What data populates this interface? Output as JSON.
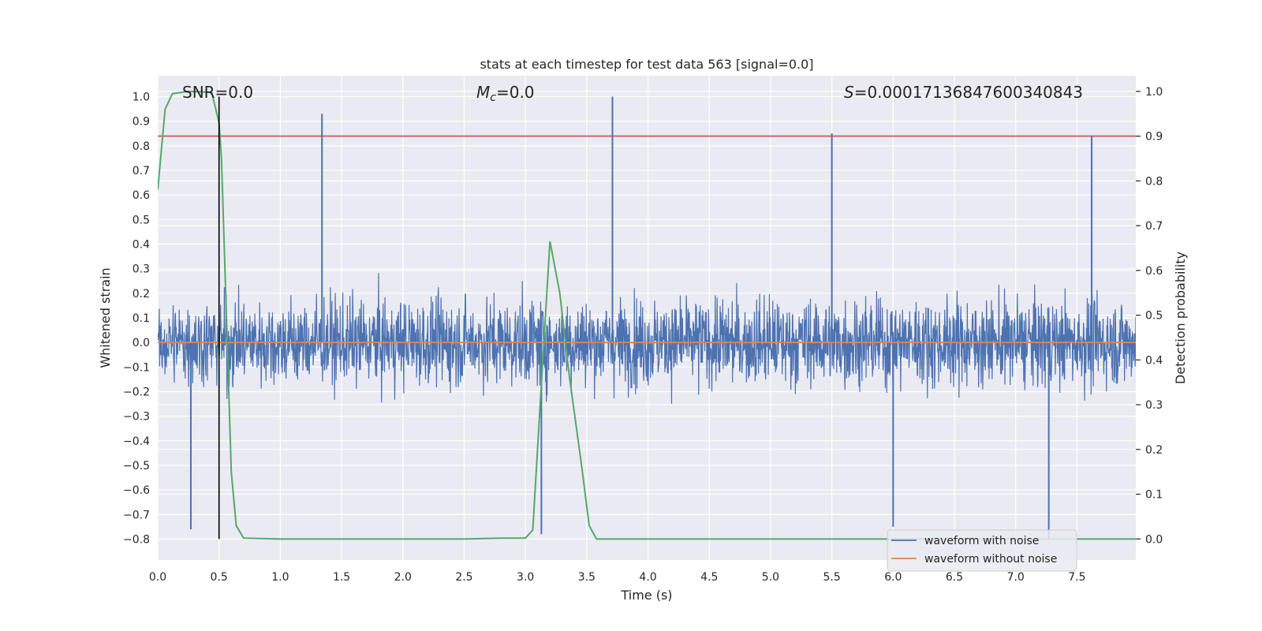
{
  "chart_data": {
    "type": "line",
    "title": "stats at each timestep for test data 563 [signal=0.0]",
    "xlabel": "Time (s)",
    "ylabel_left": "Whitened strain",
    "ylabel_right": "Detection probability",
    "xlim": [
      0.0,
      7.98
    ],
    "ylim_left": [
      -0.885,
      1.085
    ],
    "ylim_right": [
      -0.047,
      1.035
    ],
    "x_ticks": [
      "0.0",
      "0.5",
      "1.0",
      "1.5",
      "2.0",
      "2.5",
      "3.0",
      "3.5",
      "4.0",
      "4.5",
      "5.0",
      "5.5",
      "6.0",
      "6.5",
      "7.0",
      "7.5"
    ],
    "y_left_ticks": [
      "−0.8",
      "−0.7",
      "−0.6",
      "−0.5",
      "−0.4",
      "−0.3",
      "−0.2",
      "−0.1",
      "0.0",
      "0.1",
      "0.2",
      "0.3",
      "0.4",
      "0.5",
      "0.6",
      "0.7",
      "0.8",
      "0.9",
      "1.0"
    ],
    "y_right_ticks": [
      "0.0",
      "0.1",
      "0.2",
      "0.3",
      "0.4",
      "0.5",
      "0.6",
      "0.7",
      "0.8",
      "0.9",
      "1.0"
    ],
    "annotations": {
      "snr": "SNR=0.0",
      "mc_symbol": "M",
      "mc_sub": "c",
      "mc_value": "=0.0",
      "s_symbol": "S",
      "s_value": "=0.00017136847600340843"
    },
    "threshold_right": 0.9,
    "marker_time": 0.5,
    "noise_envelope": {
      "typical_amplitude": 0.26,
      "peaks": [
        {
          "t": 1.34,
          "v": 0.93
        },
        {
          "t": 3.71,
          "v": 1.0
        },
        {
          "t": 5.5,
          "v": 0.85
        },
        {
          "t": 7.62,
          "v": 0.84
        },
        {
          "t": 3.13,
          "v": -0.78
        },
        {
          "t": 0.27,
          "v": -0.76
        },
        {
          "t": 7.27,
          "v": -0.8
        },
        {
          "t": 6.0,
          "v": -0.75
        }
      ]
    },
    "series": [
      {
        "name": "waveform with noise",
        "color": "#4c72b0"
      },
      {
        "name": "waveform without noise",
        "color": "#dd8452",
        "constant": 0.0
      },
      {
        "color": "#55a868",
        "axis": "right",
        "points": [
          [
            0.0,
            0.78
          ],
          [
            0.06,
            0.96
          ],
          [
            0.12,
            0.995
          ],
          [
            0.25,
            1.0
          ],
          [
            0.44,
            0.998
          ],
          [
            0.5,
            0.93
          ],
          [
            0.52,
            0.85
          ],
          [
            0.56,
            0.5
          ],
          [
            0.6,
            0.15
          ],
          [
            0.64,
            0.03
          ],
          [
            0.7,
            0.002
          ],
          [
            1.0,
            0.0
          ],
          [
            2.0,
            0.0
          ],
          [
            2.5,
            0.0
          ],
          [
            2.8,
            0.002
          ],
          [
            3.0,
            0.002
          ],
          [
            3.06,
            0.02
          ],
          [
            3.12,
            0.3
          ],
          [
            3.2,
            0.665
          ],
          [
            3.28,
            0.55
          ],
          [
            3.36,
            0.36
          ],
          [
            3.46,
            0.16
          ],
          [
            3.52,
            0.03
          ],
          [
            3.58,
            0.0
          ],
          [
            4.0,
            0.0
          ],
          [
            6.0,
            0.0
          ],
          [
            7.98,
            0.0
          ]
        ]
      }
    ],
    "legend": {
      "placement": "lower-right"
    }
  }
}
